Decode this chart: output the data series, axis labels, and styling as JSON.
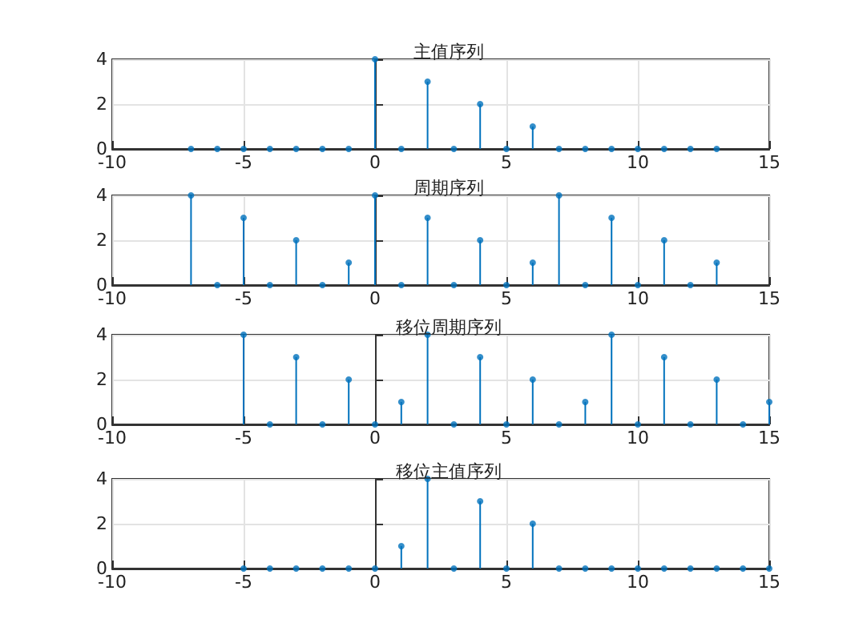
{
  "chart_data": [
    {
      "type": "lollipop",
      "title": "主值序列",
      "x": [
        -7,
        -6,
        -5,
        -4,
        -3,
        -2,
        -1,
        0,
        1,
        2,
        3,
        4,
        5,
        6,
        7,
        8,
        9,
        10,
        11,
        12,
        13
      ],
      "values": [
        0,
        0,
        0,
        0,
        0,
        0,
        0,
        4,
        0,
        3,
        0,
        2,
        0,
        1,
        0,
        0,
        0,
        0,
        0,
        0,
        0
      ],
      "color": "#0072bd",
      "xlim": [
        -10,
        15
      ],
      "xticks": [
        -10,
        -5,
        0,
        5,
        10,
        15
      ],
      "ylim": [
        0,
        4
      ],
      "yticks": [
        0,
        2,
        4
      ],
      "grid": true,
      "marker": "circle"
    },
    {
      "type": "lollipop",
      "title": "周期序列",
      "x": [
        -7,
        -6,
        -5,
        -4,
        -3,
        -2,
        -1,
        0,
        1,
        2,
        3,
        4,
        5,
        6,
        7,
        8,
        9,
        10,
        11,
        12,
        13
      ],
      "values": [
        4,
        0,
        3,
        0,
        2,
        0,
        1,
        4,
        0,
        3,
        0,
        2,
        0,
        1,
        4,
        0,
        3,
        0,
        2,
        0,
        1
      ],
      "color": "#0072bd",
      "xlim": [
        -10,
        15
      ],
      "xticks": [
        -10,
        -5,
        0,
        5,
        10,
        15
      ],
      "ylim": [
        0,
        4
      ],
      "yticks": [
        0,
        2,
        4
      ],
      "grid": true,
      "marker": "circle"
    },
    {
      "type": "lollipop",
      "title": "移位周期序列",
      "x": [
        -5,
        -4,
        -3,
        -2,
        -1,
        0,
        1,
        2,
        3,
        4,
        5,
        6,
        7,
        8,
        9,
        10,
        11,
        12,
        13,
        14,
        15
      ],
      "values": [
        4,
        0,
        3,
        0,
        2,
        0,
        1,
        4,
        0,
        3,
        0,
        2,
        0,
        1,
        4,
        0,
        3,
        0,
        2,
        0,
        1
      ],
      "color": "#0072bd",
      "xlim": [
        -10,
        15
      ],
      "xticks": [
        -10,
        -5,
        0,
        5,
        10,
        15
      ],
      "ylim": [
        0,
        4
      ],
      "yticks": [
        0,
        2,
        4
      ],
      "grid": true,
      "marker": "circle"
    },
    {
      "type": "lollipop",
      "title": "移位主值序列",
      "x": [
        -5,
        -4,
        -3,
        -2,
        -1,
        0,
        1,
        2,
        3,
        4,
        5,
        6,
        7,
        8,
        9,
        10,
        11,
        12,
        13,
        14,
        15
      ],
      "values": [
        0,
        0,
        0,
        0,
        0,
        0,
        1,
        4,
        0,
        3,
        0,
        2,
        0,
        0,
        0,
        0,
        0,
        0,
        0,
        0,
        0
      ],
      "color": "#0072bd",
      "xlim": [
        -10,
        15
      ],
      "xticks": [
        -10,
        -5,
        0,
        5,
        10,
        15
      ],
      "ylim": [
        0,
        4
      ],
      "yticks": [
        0,
        2,
        4
      ],
      "grid": true,
      "marker": "circle"
    }
  ]
}
